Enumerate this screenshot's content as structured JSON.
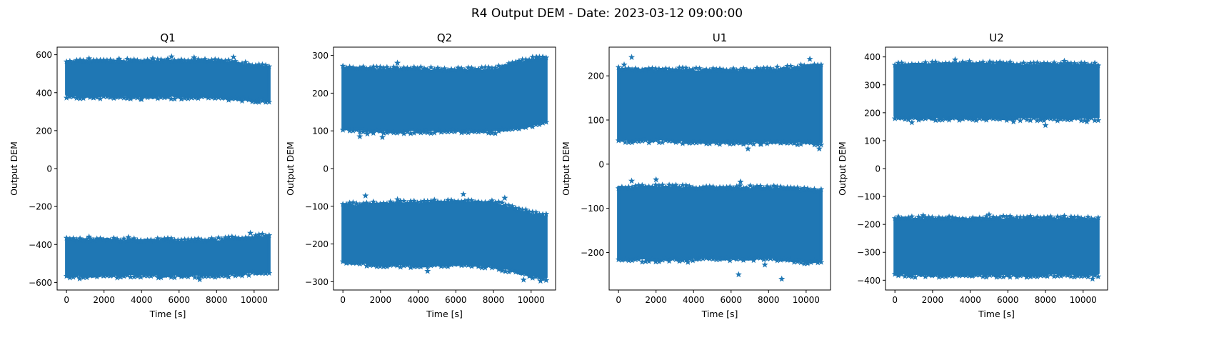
{
  "figure": {
    "suptitle": "R4 Output DEM - Date: 2023-03-12 09:00:00"
  },
  "style": {
    "series_color": "#1f77b4",
    "marker": "star",
    "background": "#ffffff"
  },
  "chart_data": [
    {
      "type": "scatter",
      "title": "Q1",
      "xlabel": "Time [s]",
      "ylabel": "Output DEM",
      "xlim": [
        -500,
        11300
      ],
      "ylim": [
        -640,
        640
      ],
      "xticks": [
        0,
        2000,
        4000,
        6000,
        8000,
        10000
      ],
      "yticks": [
        -600,
        -400,
        -200,
        0,
        200,
        400,
        600
      ],
      "grid": false,
      "series": [
        {
          "marker": "star",
          "x_range": [
            0,
            10800
          ],
          "bands": [
            {
              "label": "upper",
              "low": [
                [
                  0,
                  385
                ],
                [
                  2000,
                  382
                ],
                [
                  4000,
                  380
                ],
                [
                  6000,
                  382
                ],
                [
                  8000,
                  380
                ],
                [
                  10000,
                  366
                ],
                [
                  10800,
                  363
                ]
              ],
              "high": [
                [
                  0,
                  560
                ],
                [
                  2000,
                  562
                ],
                [
                  4000,
                  563
                ],
                [
                  6000,
                  565
                ],
                [
                  8000,
                  565
                ],
                [
                  10000,
                  540
                ],
                [
                  10800,
                  533
                ]
              ],
              "extremes": [
                [
                  1200,
                  580
                ],
                [
                  2800,
                  578
                ],
                [
                  4600,
                  580
                ],
                [
                  5600,
                  590
                ],
                [
                  6800,
                  585
                ],
                [
                  8900,
                  588
                ],
                [
                  4000,
                  365
                ],
                [
                  10200,
                  355
                ],
                [
                  9400,
                  370
                ]
              ]
            },
            {
              "label": "lower",
              "low": [
                [
                  0,
                  -560
                ],
                [
                  2000,
                  -562
                ],
                [
                  4000,
                  -560
                ],
                [
                  6000,
                  -560
                ],
                [
                  8000,
                  -560
                ],
                [
                  10000,
                  -548
                ],
                [
                  10800,
                  -545
                ]
              ],
              "high": [
                [
                  0,
                  -380
                ],
                [
                  2000,
                  -378
                ],
                [
                  4000,
                  -382
                ],
                [
                  6000,
                  -382
                ],
                [
                  8000,
                  -380
                ],
                [
                  10000,
                  -365
                ],
                [
                  10800,
                  -355
                ]
              ],
              "extremes": [
                [
                  700,
                  -580
                ],
                [
                  7100,
                  -585
                ],
                [
                  4900,
                  -575
                ],
                [
                  9800,
                  -340
                ],
                [
                  1200,
                  -360
                ],
                [
                  3300,
                  -362
                ],
                [
                  5400,
                  -368
                ]
              ]
            }
          ]
        }
      ]
    },
    {
      "type": "scatter",
      "title": "Q2",
      "xlabel": "Time [s]",
      "ylabel": "Output DEM",
      "xlim": [
        -500,
        11300
      ],
      "ylim": [
        -322,
        322
      ],
      "xticks": [
        0,
        2000,
        4000,
        6000,
        8000,
        10000
      ],
      "yticks": [
        -300,
        -200,
        -100,
        0,
        100,
        200,
        300
      ],
      "grid": false,
      "series": [
        {
          "marker": "star",
          "x_range": [
            0,
            10800
          ],
          "bands": [
            {
              "label": "upper",
              "low": [
                [
                  0,
                  108
                ],
                [
                  2000,
                  100
                ],
                [
                  4000,
                  100
                ],
                [
                  6000,
                  102
                ],
                [
                  8000,
                  100
                ],
                [
                  10000,
                  115
                ],
                [
                  10800,
                  130
                ]
              ],
              "high": [
                [
                  0,
                  265
                ],
                [
                  2000,
                  262
                ],
                [
                  4000,
                  262
                ],
                [
                  6000,
                  260
                ],
                [
                  8000,
                  262
                ],
                [
                  10000,
                  288
                ],
                [
                  10800,
                  290
                ]
              ],
              "extremes": [
                [
                  900,
                  85
                ],
                [
                  2100,
                  83
                ],
                [
                  1300,
                  92
                ],
                [
                  2900,
                  280
                ],
                [
                  10300,
                  295
                ],
                [
                  7900,
                  95
                ]
              ]
            },
            {
              "label": "lower",
              "low": [
                [
                  0,
                  -245
                ],
                [
                  2000,
                  -255
                ],
                [
                  4000,
                  -255
                ],
                [
                  6000,
                  -252
                ],
                [
                  8000,
                  -258
                ],
                [
                  10000,
                  -282
                ],
                [
                  10800,
                  -290
                ]
              ],
              "high": [
                [
                  0,
                  -98
                ],
                [
                  2000,
                  -95
                ],
                [
                  4000,
                  -92
                ],
                [
                  6000,
                  -88
                ],
                [
                  8000,
                  -92
                ],
                [
                  10000,
                  -120
                ],
                [
                  10800,
                  -128
                ]
              ],
              "extremes": [
                [
                  1200,
                  -72
                ],
                [
                  2900,
                  -82
                ],
                [
                  6400,
                  -68
                ],
                [
                  8600,
                  -78
                ],
                [
                  4500,
                  -272
                ],
                [
                  9600,
                  -295
                ],
                [
                  10500,
                  -298
                ]
              ]
            }
          ]
        }
      ]
    },
    {
      "type": "scatter",
      "title": "U1",
      "xlabel": "Time [s]",
      "ylabel": "Output DEM",
      "xlim": [
        -500,
        11300
      ],
      "ylim": [
        -285,
        265
      ],
      "xticks": [
        0,
        2000,
        4000,
        6000,
        8000,
        10000
      ],
      "yticks": [
        -200,
        -100,
        0,
        100,
        200
      ],
      "grid": false,
      "series": [
        {
          "marker": "star",
          "x_range": [
            0,
            10800
          ],
          "bands": [
            {
              "label": "upper",
              "low": [
                [
                  0,
                  55
                ],
                [
                  2000,
                  55
                ],
                [
                  4000,
                  52
                ],
                [
                  6000,
                  50
                ],
                [
                  8000,
                  52
                ],
                [
                  10000,
                  50
                ],
                [
                  10800,
                  48
                ]
              ],
              "high": [
                [
                  0,
                  215
                ],
                [
                  2000,
                  212
                ],
                [
                  4000,
                  212
                ],
                [
                  6000,
                  210
                ],
                [
                  8000,
                  212
                ],
                [
                  10000,
                  220
                ],
                [
                  10800,
                  225
                ]
              ],
              "extremes": [
                [
                  700,
                  242
                ],
                [
                  10200,
                  238
                ],
                [
                  6900,
                  35
                ],
                [
                  10700,
                  35
                ],
                [
                  300,
                  225
                ],
                [
                  7600,
                  45
                ]
              ]
            },
            {
              "label": "lower",
              "low": [
                [
                  0,
                  -215
                ],
                [
                  2000,
                  -215
                ],
                [
                  4000,
                  -212
                ],
                [
                  6000,
                  -212
                ],
                [
                  8000,
                  -212
                ],
                [
                  10000,
                  -220
                ],
                [
                  10800,
                  -218
                ]
              ],
              "high": [
                [
                  0,
                  -55
                ],
                [
                  2000,
                  -52
                ],
                [
                  4000,
                  -55
                ],
                [
                  6000,
                  -55
                ],
                [
                  8000,
                  -55
                ],
                [
                  10000,
                  -60
                ],
                [
                  10800,
                  -62
                ]
              ],
              "extremes": [
                [
                  700,
                  -38
                ],
                [
                  2000,
                  -35
                ],
                [
                  6500,
                  -40
                ],
                [
                  6400,
                  -250
                ],
                [
                  8700,
                  -260
                ],
                [
                  7800,
                  -228
                ],
                [
                  3700,
                  -222
                ]
              ]
            }
          ]
        }
      ]
    },
    {
      "type": "scatter",
      "title": "U2",
      "xlabel": "Time [s]",
      "ylabel": "Output DEM",
      "xlim": [
        -500,
        11300
      ],
      "ylim": [
        -435,
        435
      ],
      "xticks": [
        0,
        2000,
        4000,
        6000,
        8000,
        10000
      ],
      "yticks": [
        -400,
        -300,
        -200,
        -100,
        0,
        100,
        200,
        300,
        400
      ],
      "grid": false,
      "series": [
        {
          "marker": "star",
          "x_range": [
            0,
            10800
          ],
          "bands": [
            {
              "label": "upper",
              "low": [
                [
                  0,
                  185
                ],
                [
                  2000,
                  182
                ],
                [
                  4000,
                  182
                ],
                [
                  6000,
                  182
                ],
                [
                  8000,
                  182
                ],
                [
                  10000,
                  182
                ],
                [
                  10800,
                  180
                ]
              ],
              "high": [
                [
                  0,
                  368
                ],
                [
                  2000,
                  372
                ],
                [
                  4000,
                  375
                ],
                [
                  6000,
                  372
                ],
                [
                  8000,
                  370
                ],
                [
                  10000,
                  370
                ],
                [
                  10800,
                  368
                ]
              ],
              "extremes": [
                [
                  3200,
                  390
                ],
                [
                  9000,
                  385
                ],
                [
                  8000,
                  155
                ],
                [
                  900,
                  165
                ],
                [
                  10200,
                  168
                ],
                [
                  6300,
                  168
                ]
              ]
            },
            {
              "label": "lower",
              "low": [
                [
                  0,
                  -378
                ],
                [
                  2000,
                  -380
                ],
                [
                  4000,
                  -378
                ],
                [
                  6000,
                  -380
                ],
                [
                  8000,
                  -378
                ],
                [
                  10000,
                  -380
                ],
                [
                  10800,
                  -378
                ]
              ],
              "high": [
                [
                  0,
                  -182
                ],
                [
                  2000,
                  -180
                ],
                [
                  4000,
                  -182
                ],
                [
                  6000,
                  -180
                ],
                [
                  8000,
                  -180
                ],
                [
                  10000,
                  -182
                ],
                [
                  10800,
                  -185
                ]
              ],
              "extremes": [
                [
                  1500,
                  -168
                ],
                [
                  5000,
                  -165
                ],
                [
                  9000,
                  -170
                ],
                [
                  10500,
                  -395
                ],
                [
                  4100,
                  -385
                ],
                [
                  7000,
                  -388
                ]
              ]
            }
          ]
        }
      ]
    }
  ]
}
